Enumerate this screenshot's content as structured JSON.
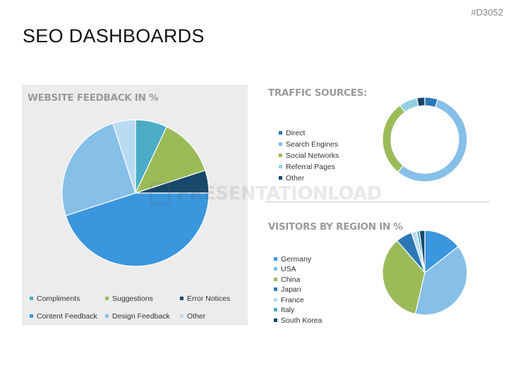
{
  "doc_code": "#D3052",
  "page_title": "SEO DASHBOARDS",
  "watermark": "PRESENTATIONLOAD",
  "chart_data": [
    {
      "type": "pie",
      "title": "WEBSITE FEEDBACK IN %",
      "categories": [
        "Compliments",
        "Suggestions",
        "Error Notices",
        "Content Feedback",
        "Design Feedback",
        "Other"
      ],
      "values": [
        7,
        13,
        5,
        45,
        25,
        5
      ],
      "colors": [
        "#4bacc6",
        "#9bbb59",
        "#17486a",
        "#3a96dd",
        "#86bfe8",
        "#b9dbf2"
      ],
      "legend_position": "bottom"
    },
    {
      "type": "pie",
      "subtype": "donut",
      "title": "TRAFFIC SOURCES:",
      "categories": [
        "Direct",
        "Search Engines",
        "Social Networks",
        "Referral Pages",
        "Other"
      ],
      "values": [
        5,
        56,
        29,
        7,
        3
      ],
      "colors": [
        "#2b78b4",
        "#86bfe8",
        "#9bbb59",
        "#92d0e0",
        "#17486a"
      ],
      "legend_position": "left"
    },
    {
      "type": "pie",
      "title": "VISITORS BY REGION IN %",
      "categories": [
        "Germany",
        "USA",
        "China",
        "Japan",
        "France",
        "Italy",
        "South Korea"
      ],
      "values": [
        14,
        38,
        34,
        6,
        2,
        1,
        2
      ],
      "colors": [
        "#3a96dd",
        "#86bfe8",
        "#9bbb59",
        "#2b78b4",
        "#b9dbf2",
        "#4bacc6",
        "#17486a"
      ],
      "legend_position": "left"
    }
  ]
}
